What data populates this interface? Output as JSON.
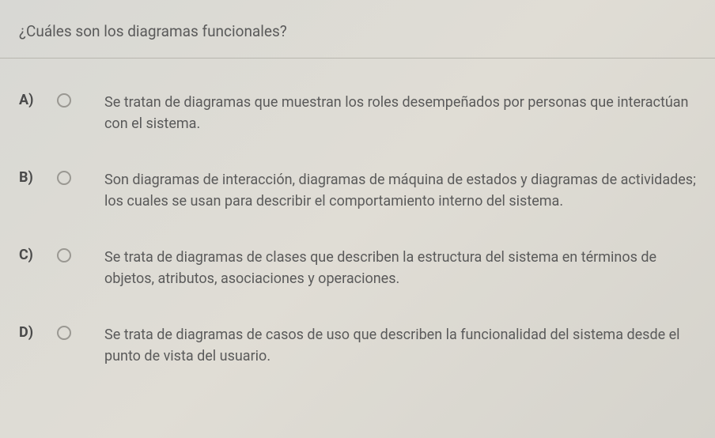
{
  "question": {
    "text": "¿Cuáles son los diagramas funcionales?"
  },
  "options": [
    {
      "label": "A)",
      "text": "Se tratan de diagramas que muestran los roles desempeñados por personas que interactúan con el sistema."
    },
    {
      "label": "B)",
      "text": "Son diagramas de interacción, diagramas de máquina de estados y diagramas de actividades; los cuales se usan para describir el comportamiento interno del sistema."
    },
    {
      "label": "C)",
      "text": "Se trata de diagramas de clases que describen la estructura del sistema en términos de objetos, atributos, asociaciones y operaciones."
    },
    {
      "label": "D)",
      "text": "Se trata de diagramas de casos de uso que describen la funcionalidad del sistema desde el punto de vista del usuario."
    }
  ],
  "styling": {
    "background_gradient_start": "#d8d8d4",
    "background_gradient_end": "#d5d3cc",
    "text_color": "#5a5a5a",
    "label_color": "#4a4a4a",
    "divider_color": "#b8b6ae",
    "radio_border_color": "#9a9892",
    "question_fontsize": 19,
    "option_fontsize": 18,
    "label_fontweight": 700
  }
}
